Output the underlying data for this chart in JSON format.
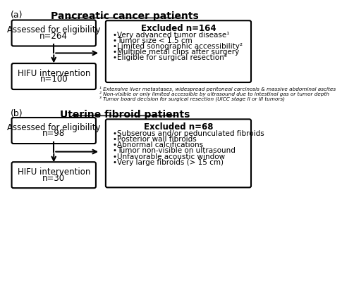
{
  "panel_a_label": "(a)",
  "panel_b_label": "(b)",
  "title_a": "Pancreatic cancer patients",
  "title_b": "Uterine fibroid patients",
  "box_a1_line1": "Assessed for eligibility",
  "box_a1_line2": "n=264",
  "box_a2_line1": "HIFU intervention",
  "box_a2_line2": "n=100",
  "excluded_a_title": "Excluded n=164",
  "excluded_a_items": [
    "Very advanced tumor disease¹",
    "Tumor size < 1.5 cm",
    "Limited sonographic accessibility²",
    "Multiple metal clips after surgery",
    "Eligible for surgical resection³"
  ],
  "footnotes_a": [
    "¹ Extensive liver metastases, widespread peritoneal carcinosis & massive abdominal ascites",
    "² Non-visible or only limited accessible by ultrasound due to intestinal gas or tumor depth",
    "³ Tumor board decision for surgical resection (UICC stage II or III tumors)"
  ],
  "box_b1_line1": "Assessed for eligibility",
  "box_b1_line2": "n=98",
  "box_b2_line1": "HIFU intervention",
  "box_b2_line2": "n=30",
  "excluded_b_title": "Excluded n=68",
  "excluded_b_items": [
    "Subserous and/or pedunculated fibroids",
    "Posterior wall fibroids",
    "Abnormal calcifications",
    "Tumor non-visible on ultrasound",
    "Unfavorable acoustic window",
    "Very large fibroids (> 15 cm)"
  ],
  "bg_color": "#ffffff",
  "box_facecolor": "#ffffff",
  "box_edgecolor": "#000000",
  "text_color": "#000000"
}
